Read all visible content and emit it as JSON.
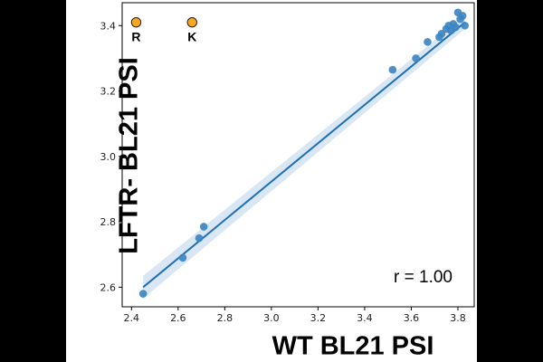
{
  "chart_data": {
    "type": "scatter",
    "title": "",
    "xlabel": "WT BL21 PSI",
    "ylabel": "LFTR- BL21 PSI",
    "xlim": [
      2.36,
      3.87
    ],
    "ylim": [
      2.54,
      3.47
    ],
    "x_ticks": [
      "2.4",
      "2.6",
      "2.8",
      "3.0",
      "3.2",
      "3.4",
      "3.6",
      "3.8"
    ],
    "y_ticks": [
      "2.6",
      "2.8",
      "3.0",
      "3.2",
      "3.4"
    ],
    "grid": false,
    "points": [
      {
        "x": 2.45,
        "y": 2.58
      },
      {
        "x": 2.62,
        "y": 2.69
      },
      {
        "x": 2.69,
        "y": 2.75
      },
      {
        "x": 2.71,
        "y": 2.785
      },
      {
        "x": 3.52,
        "y": 3.265
      },
      {
        "x": 3.62,
        "y": 3.3
      },
      {
        "x": 3.67,
        "y": 3.35
      },
      {
        "x": 3.72,
        "y": 3.365
      },
      {
        "x": 3.73,
        "y": 3.375
      },
      {
        "x": 3.75,
        "y": 3.39
      },
      {
        "x": 3.76,
        "y": 3.4
      },
      {
        "x": 3.77,
        "y": 3.385
      },
      {
        "x": 3.78,
        "y": 3.405
      },
      {
        "x": 3.79,
        "y": 3.395
      },
      {
        "x": 3.8,
        "y": 3.44
      },
      {
        "x": 3.81,
        "y": 3.42
      },
      {
        "x": 3.82,
        "y": 3.43
      },
      {
        "x": 3.83,
        "y": 3.4
      }
    ],
    "regression": {
      "x": [
        2.45,
        3.83
      ],
      "y": [
        2.6,
        3.41
      ],
      "ci_halfwidth": [
        0.035,
        0.02
      ]
    },
    "highlighted_points": [
      {
        "label": "R",
        "x": 2.42,
        "y": 3.41
      },
      {
        "label": "K",
        "x": 2.66,
        "y": 3.41
      }
    ],
    "annotation": "r = 1.00",
    "colors": {
      "points": "#3a84c2",
      "line": "#1f6fb2",
      "ci_band": "#c9dcee",
      "highlight": "#f5a623",
      "highlight_edge": "#222222"
    }
  }
}
